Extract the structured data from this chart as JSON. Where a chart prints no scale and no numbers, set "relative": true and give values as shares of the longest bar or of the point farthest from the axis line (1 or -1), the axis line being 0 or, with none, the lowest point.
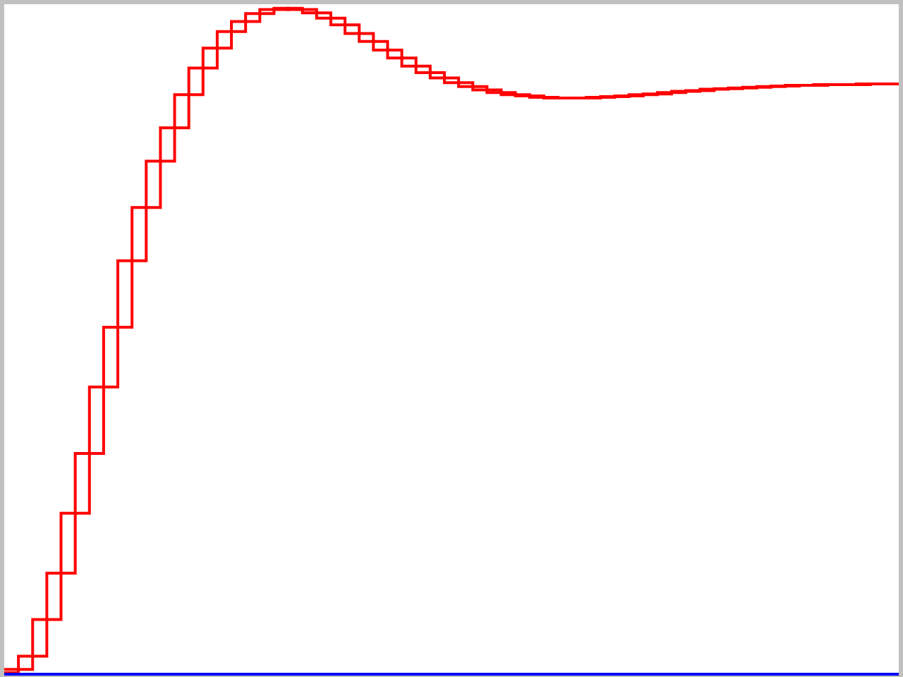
{
  "chart_data": {
    "type": "step",
    "relative": true,
    "categories": [
      null,
      null,
      null,
      null,
      null,
      null,
      null,
      null,
      null,
      null,
      null,
      null,
      null,
      null,
      null,
      null,
      null,
      null,
      null,
      null,
      null,
      null,
      null,
      null,
      null,
      null,
      null,
      null,
      null,
      null,
      null,
      null,
      null,
      null,
      null,
      null,
      null,
      null,
      null,
      null,
      null,
      null,
      null,
      null,
      null,
      null,
      null,
      null,
      null,
      null,
      null,
      null,
      null,
      null,
      null,
      null,
      null,
      null,
      null,
      null,
      null,
      null,
      null,
      null
    ],
    "series": [
      {
        "color": "#ff0000",
        "values": [
          0,
          0.005,
          0.025,
          0.08,
          0.15,
          0.24,
          0.33,
          0.43,
          0.52,
          0.62,
          0.7,
          0.77,
          0.82,
          0.87,
          0.91,
          0.94,
          0.965,
          0.98,
          0.992,
          0.998,
          1.0,
          0.998,
          0.993,
          0.985,
          0.975,
          0.962,
          0.95,
          0.937,
          0.925,
          0.913,
          0.903,
          0.895,
          0.888,
          0.882,
          0.877,
          0.873,
          0.87,
          0.868,
          0.866,
          0.865,
          0.865,
          0.865,
          0.866,
          0.867,
          0.868,
          0.87,
          0.871,
          0.873,
          0.875,
          0.876,
          0.878,
          0.879,
          0.88,
          0.881,
          0.882,
          0.883,
          0.884,
          0.884,
          0.885,
          0.885,
          0.885,
          0.886,
          0.886,
          0.886
        ]
      },
      {
        "color": "#ff0000",
        "values": [
          0.005,
          0.025,
          0.08,
          0.15,
          0.24,
          0.33,
          0.43,
          0.52,
          0.62,
          0.7,
          0.77,
          0.82,
          0.87,
          0.91,
          0.94,
          0.965,
          0.98,
          0.992,
          0.998,
          1.0,
          0.998,
          0.993,
          0.985,
          0.975,
          0.962,
          0.95,
          0.937,
          0.925,
          0.913,
          0.903,
          0.895,
          0.888,
          0.882,
          0.877,
          0.873,
          0.87,
          0.868,
          0.866,
          0.865,
          0.865,
          0.865,
          0.866,
          0.867,
          0.868,
          0.87,
          0.871,
          0.873,
          0.875,
          0.876,
          0.878,
          0.879,
          0.88,
          0.881,
          0.882,
          0.883,
          0.884,
          0.884,
          0.885,
          0.885,
          0.885,
          0.886,
          0.886,
          0.886,
          0.886
        ]
      }
    ]
  }
}
